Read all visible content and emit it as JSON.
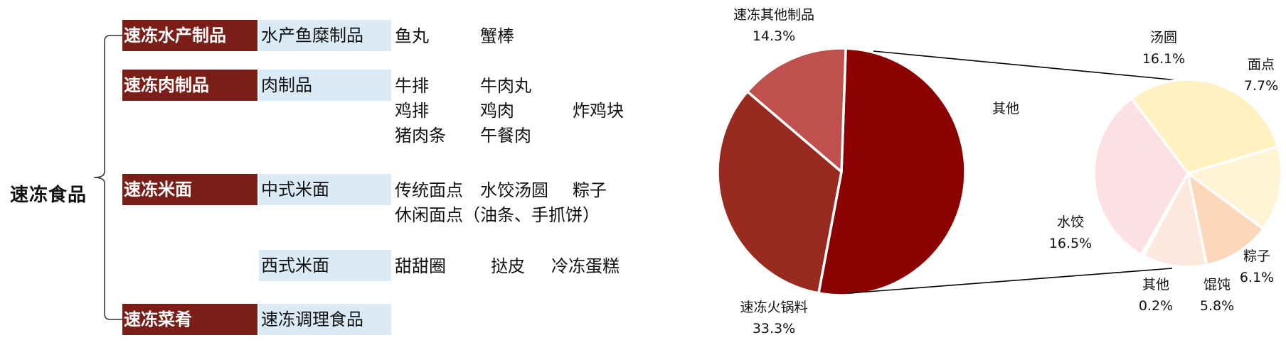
{
  "tree": {
    "root": "速冻食品",
    "categories": [
      {
        "name": "速冻水产制品",
        "subs": [
          {
            "name": "水产鱼糜制品",
            "rows": [
              [
                "鱼丸",
                "蟹棒"
              ]
            ]
          }
        ]
      },
      {
        "name": "速冻肉制品",
        "subs": [
          {
            "name": "肉制品",
            "rows": [
              [
                "牛排",
                "牛肉丸"
              ],
              [
                "鸡排",
                "鸡肉",
                "炸鸡块"
              ],
              [
                "猪肉条",
                "午餐肉"
              ]
            ]
          }
        ]
      },
      {
        "name": "速冻米面",
        "subs": [
          {
            "name": "中式米面",
            "rows": [
              [
                "传统面点",
                "水饺汤圆",
                "粽子"
              ],
              [
                "休闲面点（油条、手抓饼）"
              ]
            ]
          },
          {
            "name": "西式米面",
            "rows": [
              [
                "甜甜圈",
                "挞皮",
                "冷冻蛋糕"
              ]
            ]
          }
        ]
      },
      {
        "name": "速冻菜肴",
        "subs": [
          {
            "name": "速冻调理食品",
            "rows": []
          }
        ]
      }
    ]
  },
  "chart_data": [
    {
      "type": "pie",
      "slices": [
        {
          "label": "其他",
          "value": 52.4,
          "percent_text": "",
          "color": "#8b0000"
        },
        {
          "label": "速冻火锅料",
          "value": 33.3,
          "percent_text": "33.3%",
          "color": "#992a1f"
        },
        {
          "label": "速冻其他制品",
          "value": 14.3,
          "percent_text": "14.3%",
          "color": "#c0504d"
        }
      ]
    },
    {
      "type": "pie",
      "slices": [
        {
          "label": "汤圆",
          "value": 16.1,
          "percent_text": "16.1%",
          "color": "#fff2c0"
        },
        {
          "label": "面点",
          "value": 7.7,
          "percent_text": "7.7%",
          "color": "#fff4d4"
        },
        {
          "label": "粽子",
          "value": 6.1,
          "percent_text": "6.1%",
          "color": "#fcd7bc"
        },
        {
          "label": "馄饨",
          "value": 5.8,
          "percent_text": "5.8%",
          "color": "#fde8dd"
        },
        {
          "label": "其他",
          "value": 0.2,
          "percent_text": "0.2%",
          "color": "#fbe3e3"
        },
        {
          "label": "水饺",
          "value": 16.5,
          "percent_text": "16.5%",
          "color": "#fde0e3"
        }
      ]
    }
  ]
}
